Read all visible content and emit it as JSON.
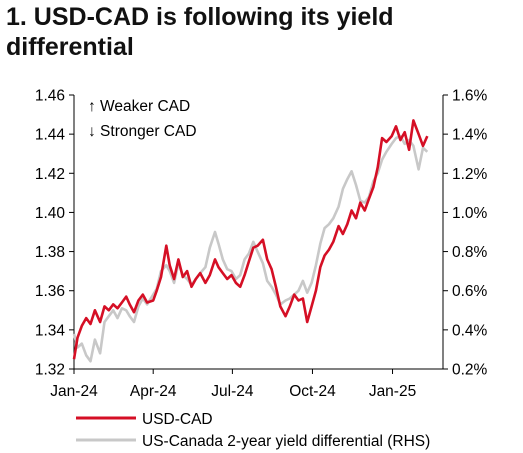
{
  "title_line1": "1. USD-CAD is following its yield",
  "title_line2": "differential",
  "annotations": {
    "weaker": "↑ Weaker CAD",
    "stronger": "↓ Stronger CAD"
  },
  "colors": {
    "usdcad": "#d50f25",
    "diff": "#c8c8c8",
    "axis": "#000000"
  },
  "chart_data": {
    "type": "line",
    "title": "1. USD-CAD is following its yield differential",
    "x_tick_labels": [
      "Jan-24",
      "Apr-24",
      "Jul-24",
      "Oct-24",
      "Jan-25"
    ],
    "x_ticks": [
      "2024-01-01",
      "2024-04-01",
      "2024-07-01",
      "2024-10-01",
      "2025-01-01"
    ],
    "y_left": {
      "lim": [
        1.32,
        1.46
      ],
      "ticks": [
        "1.32",
        "1.34",
        "1.36",
        "1.38",
        "1.40",
        "1.42",
        "1.44",
        "1.46"
      ]
    },
    "y_right": {
      "lim": [
        0.2,
        1.6
      ],
      "unit": "%",
      "ticks": [
        "0.2%",
        "0.4%",
        "0.6%",
        "0.8%",
        "1.0%",
        "1.2%",
        "1.4%",
        "1.6%"
      ]
    },
    "legend_position": "bottom",
    "series": [
      {
        "name": "USD-CAD",
        "axis": "left",
        "points": [
          [
            "2024-01-01",
            1.325
          ],
          [
            "2024-01-05",
            1.336
          ],
          [
            "2024-01-10",
            1.342
          ],
          [
            "2024-01-15",
            1.346
          ],
          [
            "2024-01-20",
            1.343
          ],
          [
            "2024-01-25",
            1.35
          ],
          [
            "2024-01-31",
            1.344
          ],
          [
            "2024-02-05",
            1.352
          ],
          [
            "2024-02-10",
            1.35
          ],
          [
            "2024-02-15",
            1.353
          ],
          [
            "2024-02-20",
            1.351
          ],
          [
            "2024-02-25",
            1.354
          ],
          [
            "2024-03-01",
            1.357
          ],
          [
            "2024-03-05",
            1.353
          ],
          [
            "2024-03-10",
            1.349
          ],
          [
            "2024-03-15",
            1.355
          ],
          [
            "2024-03-20",
            1.358
          ],
          [
            "2024-03-25",
            1.354
          ],
          [
            "2024-04-01",
            1.355
          ],
          [
            "2024-04-05",
            1.36
          ],
          [
            "2024-04-10",
            1.367
          ],
          [
            "2024-04-16",
            1.383
          ],
          [
            "2024-04-20",
            1.373
          ],
          [
            "2024-04-25",
            1.366
          ],
          [
            "2024-04-30",
            1.376
          ],
          [
            "2024-05-05",
            1.367
          ],
          [
            "2024-05-10",
            1.37
          ],
          [
            "2024-05-15",
            1.362
          ],
          [
            "2024-05-20",
            1.366
          ],
          [
            "2024-05-25",
            1.369
          ],
          [
            "2024-05-31",
            1.364
          ],
          [
            "2024-06-05",
            1.368
          ],
          [
            "2024-06-11",
            1.376
          ],
          [
            "2024-06-15",
            1.372
          ],
          [
            "2024-06-20",
            1.369
          ],
          [
            "2024-06-25",
            1.366
          ],
          [
            "2024-06-30",
            1.368
          ],
          [
            "2024-07-05",
            1.364
          ],
          [
            "2024-07-10",
            1.362
          ],
          [
            "2024-07-15",
            1.368
          ],
          [
            "2024-07-20",
            1.375
          ],
          [
            "2024-07-25",
            1.382
          ],
          [
            "2024-07-30",
            1.383
          ],
          [
            "2024-08-05",
            1.386
          ],
          [
            "2024-08-10",
            1.376
          ],
          [
            "2024-08-15",
            1.371
          ],
          [
            "2024-08-20",
            1.362
          ],
          [
            "2024-08-25",
            1.352
          ],
          [
            "2024-08-31",
            1.347
          ],
          [
            "2024-09-05",
            1.352
          ],
          [
            "2024-09-10",
            1.358
          ],
          [
            "2024-09-15",
            1.355
          ],
          [
            "2024-09-20",
            1.356
          ],
          [
            "2024-09-25",
            1.344
          ],
          [
            "2024-09-30",
            1.352
          ],
          [
            "2024-10-05",
            1.36
          ],
          [
            "2024-10-10",
            1.372
          ],
          [
            "2024-10-15",
            1.378
          ],
          [
            "2024-10-20",
            1.381
          ],
          [
            "2024-10-25",
            1.385
          ],
          [
            "2024-10-31",
            1.393
          ],
          [
            "2024-11-05",
            1.389
          ],
          [
            "2024-11-10",
            1.394
          ],
          [
            "2024-11-15",
            1.401
          ],
          [
            "2024-11-20",
            1.397
          ],
          [
            "2024-11-25",
            1.405
          ],
          [
            "2024-11-30",
            1.401
          ],
          [
            "2024-12-05",
            1.407
          ],
          [
            "2024-12-10",
            1.413
          ],
          [
            "2024-12-15",
            1.423
          ],
          [
            "2024-12-20",
            1.438
          ],
          [
            "2024-12-25",
            1.436
          ],
          [
            "2024-12-31",
            1.439
          ],
          [
            "2025-01-05",
            1.444
          ],
          [
            "2025-01-10",
            1.437
          ],
          [
            "2025-01-15",
            1.441
          ],
          [
            "2025-01-20",
            1.432
          ],
          [
            "2025-01-25",
            1.447
          ],
          [
            "2025-01-31",
            1.44
          ],
          [
            "2025-02-05",
            1.434
          ],
          [
            "2025-02-10",
            1.439
          ]
        ]
      },
      {
        "name": "US-Canada 2-year yield differential (RHS)",
        "axis": "right",
        "points": [
          [
            "2024-01-01",
            0.38
          ],
          [
            "2024-01-05",
            0.31
          ],
          [
            "2024-01-10",
            0.33
          ],
          [
            "2024-01-15",
            0.27
          ],
          [
            "2024-01-20",
            0.24
          ],
          [
            "2024-01-25",
            0.35
          ],
          [
            "2024-01-31",
            0.28
          ],
          [
            "2024-02-05",
            0.44
          ],
          [
            "2024-02-10",
            0.47
          ],
          [
            "2024-02-15",
            0.5
          ],
          [
            "2024-02-20",
            0.46
          ],
          [
            "2024-02-25",
            0.51
          ],
          [
            "2024-03-01",
            0.5
          ],
          [
            "2024-03-05",
            0.47
          ],
          [
            "2024-03-10",
            0.44
          ],
          [
            "2024-03-15",
            0.52
          ],
          [
            "2024-03-20",
            0.56
          ],
          [
            "2024-03-25",
            0.53
          ],
          [
            "2024-04-01",
            0.58
          ],
          [
            "2024-04-05",
            0.61
          ],
          [
            "2024-04-10",
            0.7
          ],
          [
            "2024-04-16",
            0.73
          ],
          [
            "2024-04-20",
            0.7
          ],
          [
            "2024-04-25",
            0.64
          ],
          [
            "2024-04-30",
            0.74
          ],
          [
            "2024-05-05",
            0.68
          ],
          [
            "2024-05-10",
            0.66
          ],
          [
            "2024-05-15",
            0.63
          ],
          [
            "2024-05-20",
            0.66
          ],
          [
            "2024-05-25",
            0.69
          ],
          [
            "2024-05-31",
            0.72
          ],
          [
            "2024-06-05",
            0.82
          ],
          [
            "2024-06-11",
            0.9
          ],
          [
            "2024-06-15",
            0.84
          ],
          [
            "2024-06-20",
            0.76
          ],
          [
            "2024-06-25",
            0.71
          ],
          [
            "2024-06-30",
            0.7
          ],
          [
            "2024-07-05",
            0.66
          ],
          [
            "2024-07-10",
            0.68
          ],
          [
            "2024-07-15",
            0.76
          ],
          [
            "2024-07-20",
            0.79
          ],
          [
            "2024-07-25",
            0.85
          ],
          [
            "2024-07-30",
            0.8
          ],
          [
            "2024-08-05",
            0.74
          ],
          [
            "2024-08-10",
            0.65
          ],
          [
            "2024-08-15",
            0.62
          ],
          [
            "2024-08-20",
            0.58
          ],
          [
            "2024-08-25",
            0.53
          ],
          [
            "2024-08-31",
            0.55
          ],
          [
            "2024-09-05",
            0.56
          ],
          [
            "2024-09-10",
            0.58
          ],
          [
            "2024-09-15",
            0.6
          ],
          [
            "2024-09-20",
            0.65
          ],
          [
            "2024-09-25",
            0.59
          ],
          [
            "2024-09-30",
            0.64
          ],
          [
            "2024-10-05",
            0.73
          ],
          [
            "2024-10-10",
            0.84
          ],
          [
            "2024-10-15",
            0.92
          ],
          [
            "2024-10-20",
            0.94
          ],
          [
            "2024-10-25",
            0.97
          ],
          [
            "2024-10-31",
            1.03
          ],
          [
            "2024-11-05",
            1.12
          ],
          [
            "2024-11-10",
            1.17
          ],
          [
            "2024-11-15",
            1.21
          ],
          [
            "2024-11-20",
            1.14
          ],
          [
            "2024-11-25",
            1.06
          ],
          [
            "2024-11-30",
            1.05
          ],
          [
            "2024-12-05",
            1.08
          ],
          [
            "2024-12-10",
            1.16
          ],
          [
            "2024-12-15",
            1.2
          ],
          [
            "2024-12-20",
            1.27
          ],
          [
            "2024-12-25",
            1.31
          ],
          [
            "2024-12-31",
            1.35
          ],
          [
            "2025-01-05",
            1.38
          ],
          [
            "2025-01-10",
            1.39
          ],
          [
            "2025-01-15",
            1.35
          ],
          [
            "2025-01-20",
            1.37
          ],
          [
            "2025-01-25",
            1.34
          ],
          [
            "2025-01-31",
            1.22
          ],
          [
            "2025-02-05",
            1.33
          ],
          [
            "2025-02-10",
            1.31
          ]
        ]
      }
    ]
  }
}
